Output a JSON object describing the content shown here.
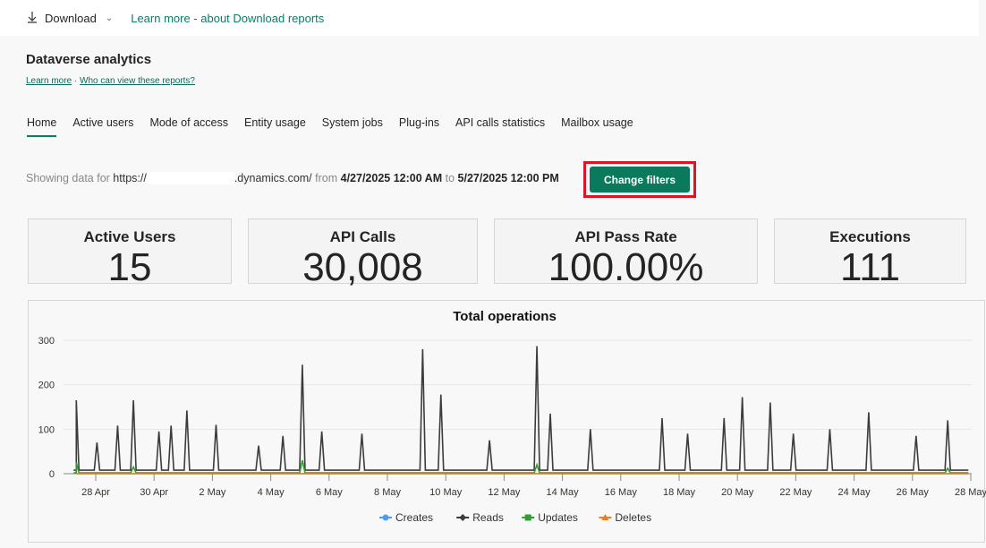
{
  "topbar": {
    "download_label": "Download",
    "learn_more": "Learn more - about Download reports",
    "icons": [
      "download-arrow-icon",
      "chevron-down-icon"
    ]
  },
  "header": {
    "title": "Dataverse analytics",
    "learn_more": "Learn more",
    "separator": "·",
    "who_can_view": "Who can view these reports?"
  },
  "tabs": [
    {
      "label": "Home",
      "active": true
    },
    {
      "label": "Active users"
    },
    {
      "label": "Mode of access"
    },
    {
      "label": "Entity usage"
    },
    {
      "label": "System jobs"
    },
    {
      "label": "Plug-ins"
    },
    {
      "label": "API calls statistics"
    },
    {
      "label": "Mailbox usage"
    }
  ],
  "filter": {
    "prefix": "Showing data for ",
    "url_start": "https://",
    "url_end": ".dynamics.com/",
    "from": " from ",
    "start": "4/27/2025 12:00 AM",
    "to": " to ",
    "end": "5/27/2025 12:00 PM",
    "button": "Change filters",
    "highlight_color": "#e3121e",
    "button_color": "#0b7a5c"
  },
  "cards": [
    {
      "label": "Active Users",
      "value": "15"
    },
    {
      "label": "API Calls",
      "value": "30,008"
    },
    {
      "label": "API Pass Rate",
      "value": "100.00%"
    },
    {
      "label": "Executions",
      "value": "111"
    }
  ],
  "chart_data": {
    "type": "line",
    "title": "Total operations",
    "ylim": [
      0,
      300
    ],
    "yticks": [
      0,
      100,
      200,
      300
    ],
    "grid": true,
    "legend": "bottom",
    "xticks": [
      "28 Apr",
      "30 Apr",
      "2 May",
      "4 May",
      "6 May",
      "8 May",
      "10 May",
      "12 May",
      "14 May",
      "16 May",
      "18 May",
      "20 May",
      "22 May",
      "24 May",
      "26 May",
      "28 May"
    ],
    "xrange": [
      "2025-04-27T08:00",
      "2025-05-27T22:00"
    ],
    "series": [
      {
        "name": "Creates",
        "color": "#4a9ff5",
        "marker": "circle",
        "baseline": 0,
        "points": []
      },
      {
        "name": "Reads",
        "color": "#3c3c3c",
        "marker": "diamond",
        "baseline": 8,
        "points": [
          [
            "2025-04-27T08:00",
            165
          ],
          [
            "2025-04-28T01:00",
            70
          ],
          [
            "2025-04-28T18:00",
            108
          ],
          [
            "2025-04-29T07:00",
            165
          ],
          [
            "2025-04-30T04:00",
            95
          ],
          [
            "2025-04-30T14:00",
            108
          ],
          [
            "2025-05-01T03:00",
            142
          ],
          [
            "2025-05-02T03:00",
            110
          ],
          [
            "2025-05-03T14:00",
            63
          ],
          [
            "2025-05-04T10:00",
            85
          ],
          [
            "2025-05-05T02:00",
            245
          ],
          [
            "2025-05-05T18:00",
            95
          ],
          [
            "2025-05-07T03:00",
            90
          ],
          [
            "2025-05-09T05:00",
            280
          ],
          [
            "2025-05-09T20:00",
            178
          ],
          [
            "2025-05-11T12:00",
            75
          ],
          [
            "2025-05-13T03:00",
            287
          ],
          [
            "2025-05-13T14:00",
            135
          ],
          [
            "2025-05-14T23:00",
            100
          ],
          [
            "2025-05-17T10:00",
            125
          ],
          [
            "2025-05-18T07:00",
            90
          ],
          [
            "2025-05-19T13:00",
            125
          ],
          [
            "2025-05-20T04:00",
            172
          ],
          [
            "2025-05-21T03:00",
            160
          ],
          [
            "2025-05-21T22:00",
            90
          ],
          [
            "2025-05-23T04:00",
            100
          ],
          [
            "2025-05-24T12:00",
            138
          ],
          [
            "2025-05-26T03:00",
            85
          ],
          [
            "2025-05-27T05:00",
            120
          ]
        ]
      },
      {
        "name": "Updates",
        "color": "#2ca02c",
        "marker": "square",
        "baseline": 2,
        "points": [
          [
            "2025-04-27T08:00",
            25
          ],
          [
            "2025-04-29T07:00",
            15
          ],
          [
            "2025-05-05T02:00",
            30
          ],
          [
            "2025-05-13T03:00",
            20
          ],
          [
            "2025-05-27T05:00",
            12
          ]
        ]
      },
      {
        "name": "Deletes",
        "color": "#f07d1a",
        "marker": "triangle",
        "baseline": 0,
        "points": []
      }
    ]
  }
}
